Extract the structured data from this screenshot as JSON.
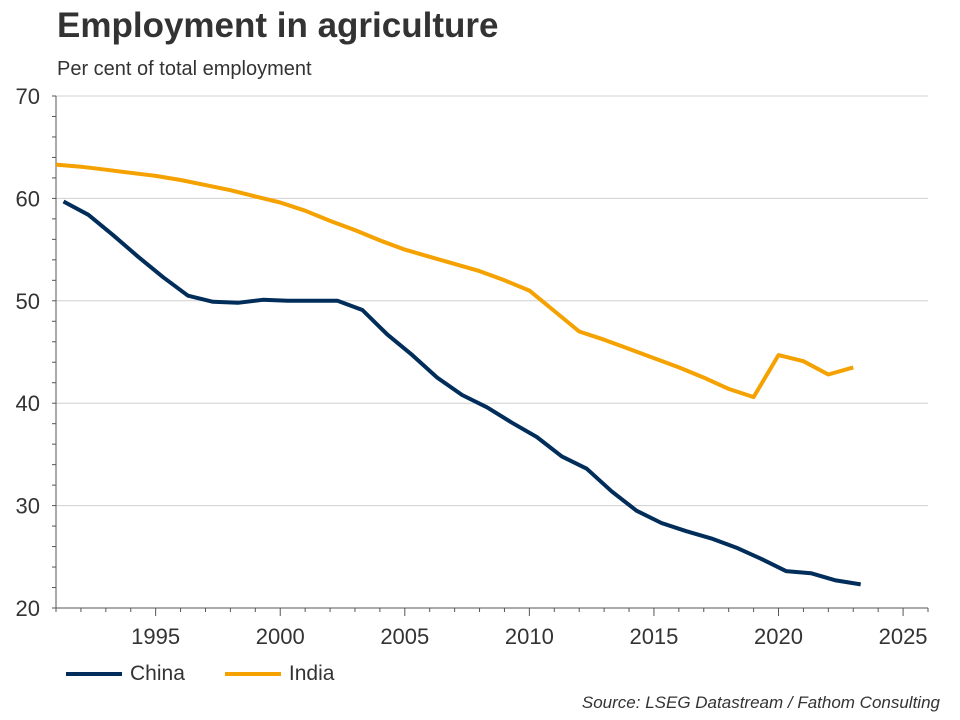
{
  "chart_data": {
    "type": "line",
    "title": "Employment in agriculture",
    "subtitle": "Per cent of total employment",
    "xlabel": "",
    "ylabel": "",
    "xlim": [
      1991,
      2026
    ],
    "ylim": [
      20,
      70
    ],
    "xticks": [
      1995,
      2000,
      2005,
      2010,
      2015,
      2020,
      2025
    ],
    "yticks": [
      20,
      30,
      40,
      50,
      60,
      70
    ],
    "grid": true,
    "legend_position": "bottom-left",
    "source": "Source: LSEG Datastream / Fathom Consulting",
    "series": [
      {
        "name": "China",
        "color": "#002D5A",
        "x": [
          1991.3,
          1992.3,
          1993.3,
          1994.3,
          1995.3,
          1996.3,
          1997.3,
          1998.3,
          1999.3,
          2000.3,
          2001.3,
          2002.3,
          2003.3,
          2004.3,
          2005.3,
          2006.3,
          2007.3,
          2008.3,
          2009.3,
          2010.3,
          2011.3,
          2012.3,
          2013.3,
          2014.3,
          2015.3,
          2016.3,
          2017.3,
          2018.3,
          2019.3,
          2020.3,
          2021.3,
          2022.3,
          2023.3
        ],
        "values": [
          59.7,
          58.4,
          56.4,
          54.3,
          52.3,
          50.5,
          49.9,
          49.8,
          50.1,
          50.0,
          50.0,
          50.0,
          49.1,
          46.7,
          44.7,
          42.5,
          40.8,
          39.6,
          38.1,
          36.7,
          34.8,
          33.6,
          31.4,
          29.5,
          28.3,
          27.5,
          26.8,
          25.9,
          24.8,
          23.6,
          23.4,
          22.7,
          22.3
        ]
      },
      {
        "name": "India",
        "color": "#F5A100",
        "x": [
          1991,
          1992,
          1993,
          1994,
          1995,
          1996,
          1997,
          1998,
          1999,
          2000,
          2001,
          2002,
          2003,
          2004,
          2005,
          2006,
          2007,
          2008,
          2009,
          2010,
          2011,
          2012,
          2013,
          2014,
          2015,
          2016,
          2017,
          2018,
          2019,
          2020,
          2021,
          2022,
          2023
        ],
        "values": [
          63.3,
          63.1,
          62.8,
          62.5,
          62.2,
          61.8,
          61.3,
          60.8,
          60.2,
          59.6,
          58.8,
          57.8,
          56.9,
          55.9,
          55.0,
          54.3,
          53.6,
          52.9,
          52.0,
          51.0,
          49.0,
          47.0,
          46.2,
          45.3,
          44.4,
          43.5,
          42.5,
          41.4,
          40.6,
          44.7,
          44.1,
          42.8,
          43.5
        ]
      }
    ]
  }
}
